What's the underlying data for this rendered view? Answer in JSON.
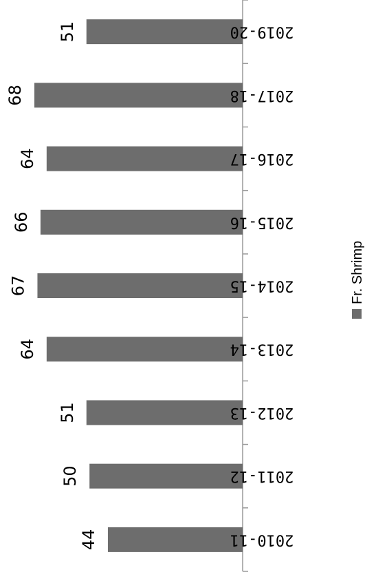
{
  "chart_data": {
    "type": "bar",
    "orientation": "horizontal",
    "categories": [
      "2010-11",
      "2011-12",
      "2012-13",
      "2013-14",
      "2014-15",
      "2015-16",
      "2016-17",
      "2017-18",
      "2019-20"
    ],
    "series": [
      {
        "name": "Fr. Shrimp",
        "values": [
          44,
          50,
          51,
          64,
          67,
          66,
          64,
          68,
          51
        ],
        "color": "#6d6d6d"
      }
    ],
    "data_labels": [
      "44",
      "50",
      "51",
      "64",
      "67",
      "66",
      "64",
      "68",
      "51"
    ],
    "legend": {
      "label": "Fr. Shrimp",
      "position": "right"
    },
    "axis_color": "#9a9a9a",
    "grid": false,
    "xlim": [
      0,
      75
    ]
  }
}
